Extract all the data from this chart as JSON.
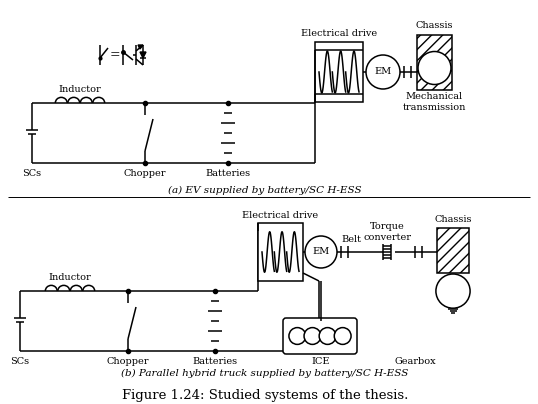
{
  "fig_width": 5.38,
  "fig_height": 4.04,
  "dpi": 100,
  "bg_color": "#ffffff",
  "line_color": "#000000",
  "lw": 1.1,
  "caption_a": "(a) EV supplied by battery/SC H-ESS",
  "caption_b": "(b) Parallel hybrid truck supplied by battery/SC H-ESS",
  "figure_caption": "Figure 1.24: Studied systems of the thesis.",
  "label_SCs_a": "SCs",
  "label_Chopper_a": "Chopper",
  "label_Batteries_a": "Batteries",
  "label_Inductor_a": "Inductor",
  "label_Elec_drive_a": "Electrical drive",
  "label_Chassis_a": "Chassis",
  "label_Mech_trans_a": "Mechanical\ntransmission",
  "label_SCs_b": "SCs",
  "label_Chopper_b": "Chopper",
  "label_Batteries_b": "Batteries",
  "label_Inductor_b": "Inductor",
  "label_Elec_drive_b": "Electrical drive",
  "label_Belt_b": "Belt",
  "label_Torque_b": "Torque\nconverter",
  "label_Chassis_b": "Chassis",
  "label_Gearbox_b": "Gearbox",
  "label_ICE_b": "ICE",
  "label_EM_a": "EM",
  "label_EM_b": "EM"
}
